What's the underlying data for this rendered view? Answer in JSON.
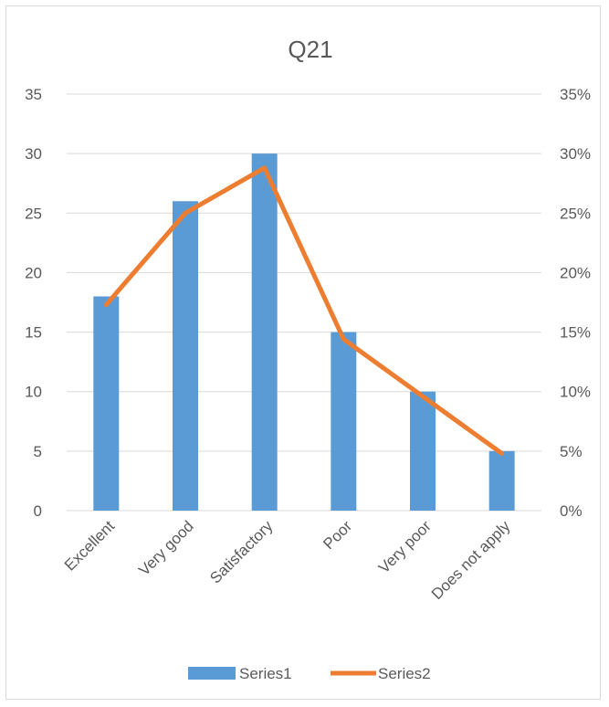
{
  "chart_data": {
    "type": "bar",
    "title": "Q21",
    "categories": [
      "Excellent",
      "Very good",
      "Satisfactory",
      "Poor",
      "Very poor",
      "Does not apply"
    ],
    "series": [
      {
        "name": "Series1",
        "type": "bar",
        "axis": "left",
        "color": "#5B9BD5",
        "values": [
          18,
          26,
          30,
          15,
          10,
          5
        ]
      },
      {
        "name": "Series2",
        "type": "line",
        "axis": "right",
        "color": "#ED7D31",
        "values": [
          0.173,
          0.25,
          0.288,
          0.144,
          0.096,
          0.048
        ]
      }
    ],
    "ylim": [
      0,
      35
    ],
    "yticks": [
      "0",
      "5",
      "10",
      "15",
      "20",
      "25",
      "30",
      "35"
    ],
    "y2lim": [
      0,
      0.35
    ],
    "y2ticks": [
      "0%",
      "5%",
      "10%",
      "15%",
      "20%",
      "25%",
      "30%",
      "35%"
    ],
    "grid": true,
    "legend": "bottom"
  }
}
